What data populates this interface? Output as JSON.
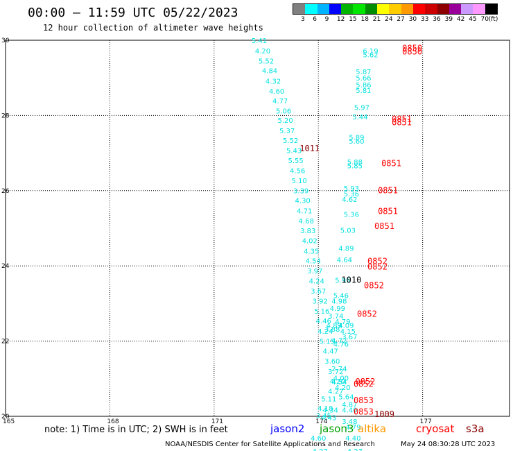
{
  "header": {
    "title": "00:00 – 11:59 UTC 05/22/2023",
    "subtitle": "12 hour collection of altimeter wave heights"
  },
  "legend": {
    "colors": [
      "#808080",
      "#00ffff",
      "#00b4ff",
      "#0000ff",
      "#00b400",
      "#00e600",
      "#008c00",
      "#ffff00",
      "#ffcc00",
      "#ff9900",
      "#ff0000",
      "#cc0000",
      "#8c0000",
      "#990099",
      "#cc99ff",
      "#ff99ff",
      "#000000"
    ],
    "labels": [
      "3",
      "6",
      "9",
      "12",
      "15",
      "18",
      "21",
      "24",
      "27",
      "30",
      "33",
      "36",
      "39",
      "42",
      "45",
      "70",
      "(ft)"
    ]
  },
  "footer": {
    "note": "note: 1) Time is in UTC; 2) SWH is in feet",
    "satellites": [
      {
        "name": "jason2",
        "color": "#0000ff"
      },
      {
        "name": "jason3",
        "color": "#00a000"
      },
      {
        "name": "altika",
        "color": "#ff9900"
      },
      {
        "name": "cryosat",
        "color": "#ff0000"
      },
      {
        "name": "s3a",
        "color": "#8c0000"
      }
    ],
    "credit": "NOAA/NESDIS Center for Satellite Applications and Research",
    "timestamp": "May 24 08:30:28 UTC 2023"
  },
  "map": {
    "lon_range": [
      165,
      179.5
    ],
    "lat_range": [
      20,
      30
    ],
    "lon_ticks": [
      "165",
      "168",
      "171",
      "174",
      "177"
    ],
    "lat_ticks": [
      "30",
      "28",
      "26",
      "24",
      "22",
      "20"
    ],
    "lat_tick_values": [
      30,
      28,
      26,
      24,
      22,
      20
    ],
    "lon_tick_values": [
      165,
      168,
      171,
      174,
      177
    ]
  },
  "chart_data": {
    "type": "scatter",
    "title": "00:00 – 11:59 UTC 05/22/2023",
    "subtitle": "12 hour collection of altimeter wave heights",
    "xlim": [
      165,
      179.5
    ],
    "ylim": [
      20,
      30
    ],
    "grid": true,
    "wave_heights": [
      {
        "lon": 172.3,
        "lat": 29.93,
        "label": "5.41"
      },
      {
        "lon": 172.4,
        "lat": 29.65,
        "label": "4.20"
      },
      {
        "lon": 172.5,
        "lat": 29.38,
        "label": "5.52"
      },
      {
        "lon": 172.6,
        "lat": 29.12,
        "label": "4.84"
      },
      {
        "lon": 172.7,
        "lat": 28.85,
        "label": "4.32"
      },
      {
        "lon": 172.8,
        "lat": 28.58,
        "label": "4.60"
      },
      {
        "lon": 172.9,
        "lat": 28.32,
        "label": "4.77"
      },
      {
        "lon": 173.0,
        "lat": 28.05,
        "label": "5.06"
      },
      {
        "lon": 173.05,
        "lat": 27.8,
        "label": "5.20"
      },
      {
        "lon": 173.1,
        "lat": 27.53,
        "label": "5.37"
      },
      {
        "lon": 173.2,
        "lat": 27.27,
        "label": "5.52"
      },
      {
        "lon": 173.3,
        "lat": 27.0,
        "label": "5.43"
      },
      {
        "lon": 173.35,
        "lat": 26.73,
        "label": "5.55"
      },
      {
        "lon": 173.4,
        "lat": 26.47,
        "label": "4.56"
      },
      {
        "lon": 173.45,
        "lat": 26.2,
        "label": "5.10"
      },
      {
        "lon": 173.5,
        "lat": 25.93,
        "label": "3.39"
      },
      {
        "lon": 173.55,
        "lat": 25.67,
        "label": "4.30"
      },
      {
        "lon": 173.6,
        "lat": 25.4,
        "label": "4.71"
      },
      {
        "lon": 173.65,
        "lat": 25.13,
        "label": "4.68"
      },
      {
        "lon": 173.7,
        "lat": 24.87,
        "label": "3.83"
      },
      {
        "lon": 173.75,
        "lat": 24.6,
        "label": "4.02"
      },
      {
        "lon": 173.8,
        "lat": 24.33,
        "label": "4.35"
      },
      {
        "lon": 173.85,
        "lat": 24.07,
        "label": "4.54"
      },
      {
        "lon": 173.9,
        "lat": 23.8,
        "label": "3.97"
      },
      {
        "lon": 173.95,
        "lat": 23.53,
        "label": "4.24"
      },
      {
        "lon": 174.0,
        "lat": 23.27,
        "label": "3.67"
      },
      {
        "lon": 174.05,
        "lat": 23.0,
        "label": "3.92"
      },
      {
        "lon": 174.1,
        "lat": 22.73,
        "label": "5.16"
      },
      {
        "lon": 174.15,
        "lat": 22.47,
        "label": "4.46"
      },
      {
        "lon": 174.2,
        "lat": 22.2,
        "label": "4.24"
      },
      {
        "lon": 174.25,
        "lat": 21.93,
        "label": "5.15"
      },
      {
        "lon": 174.35,
        "lat": 21.67,
        "label": "4.47"
      },
      {
        "lon": 174.4,
        "lat": 21.4,
        "label": "3.60"
      },
      {
        "lon": 174.5,
        "lat": 21.13,
        "label": "3.72"
      },
      {
        "lon": 174.55,
        "lat": 20.87,
        "label": "4.20"
      },
      {
        "lon": 174.5,
        "lat": 20.6,
        "label": "4.27"
      },
      {
        "lon": 174.6,
        "lat": 21.95,
        "label": "4.72"
      },
      {
        "lon": 174.65,
        "lat": 21.85,
        "label": "4.76"
      },
      {
        "lon": 174.7,
        "lat": 22.45,
        "label": "4.79"
      },
      {
        "lon": 174.8,
        "lat": 22.35,
        "label": "4.09"
      },
      {
        "lon": 174.85,
        "lat": 22.2,
        "label": "4.15"
      },
      {
        "lon": 174.9,
        "lat": 22.05,
        "label": "3.67"
      },
      {
        "lon": 174.6,
        "lat": 21.2,
        "label": "2.74"
      },
      {
        "lon": 174.65,
        "lat": 20.95,
        "label": "4.00"
      },
      {
        "lon": 174.6,
        "lat": 20.85,
        "label": "4.54"
      },
      {
        "lon": 174.7,
        "lat": 20.7,
        "label": "4.20"
      },
      {
        "lon": 174.8,
        "lat": 20.45,
        "label": "5.64"
      },
      {
        "lon": 174.3,
        "lat": 20.4,
        "label": "5.11"
      },
      {
        "lon": 174.9,
        "lat": 20.25,
        "label": "4.87"
      },
      {
        "lon": 174.2,
        "lat": 20.15,
        "label": "4.18"
      },
      {
        "lon": 174.35,
        "lat": 20.1,
        "label": "4.34"
      },
      {
        "lon": 174.9,
        "lat": 20.1,
        "label": "4.40"
      },
      {
        "lon": 174.15,
        "lat": 19.95,
        "label": "3.45"
      },
      {
        "lon": 174.3,
        "lat": 19.9,
        "label": "4.43"
      },
      {
        "lon": 174.9,
        "lat": 19.8,
        "label": "3.48"
      },
      {
        "lon": 175.0,
        "lat": 19.65,
        "label": "4.79"
      },
      {
        "lon": 174.0,
        "lat": 19.35,
        "label": "4.60"
      },
      {
        "lon": 175.0,
        "lat": 19.35,
        "label": "4.40"
      },
      {
        "lon": 174.05,
        "lat": 19.0,
        "label": "4.27"
      },
      {
        "lon": 175.05,
        "lat": 19.0,
        "label": "4.27"
      },
      {
        "lon": 175.5,
        "lat": 29.65,
        "label": "6.19"
      },
      {
        "lon": 175.5,
        "lat": 29.55,
        "label": "5.62"
      },
      {
        "lon": 175.3,
        "lat": 29.1,
        "label": "5.87"
      },
      {
        "lon": 175.3,
        "lat": 28.93,
        "label": "5.66"
      },
      {
        "lon": 175.3,
        "lat": 28.75,
        "label": "5.86"
      },
      {
        "lon": 175.3,
        "lat": 28.6,
        "label": "5.81"
      },
      {
        "lon": 175.25,
        "lat": 28.15,
        "label": "5.97"
      },
      {
        "lon": 175.2,
        "lat": 27.9,
        "label": "5.44"
      },
      {
        "lon": 175.1,
        "lat": 27.35,
        "label": "5.89"
      },
      {
        "lon": 175.1,
        "lat": 27.25,
        "label": "5.60"
      },
      {
        "lon": 175.05,
        "lat": 26.7,
        "label": "5.88"
      },
      {
        "lon": 175.05,
        "lat": 26.6,
        "label": "5.85"
      },
      {
        "lon": 174.95,
        "lat": 26.0,
        "label": "5.93"
      },
      {
        "lon": 174.95,
        "lat": 25.85,
        "label": "5.36"
      },
      {
        "lon": 174.9,
        "lat": 25.7,
        "label": "4.62"
      },
      {
        "lon": 174.95,
        "lat": 25.3,
        "label": "5.36"
      },
      {
        "lon": 174.85,
        "lat": 24.88,
        "label": "5.03"
      },
      {
        "lon": 174.8,
        "lat": 24.4,
        "label": "4.89"
      },
      {
        "lon": 174.75,
        "lat": 24.1,
        "label": "4.64"
      },
      {
        "lon": 174.7,
        "lat": 23.55,
        "label": "5.95"
      },
      {
        "lon": 174.65,
        "lat": 23.15,
        "label": "5.46"
      },
      {
        "lon": 174.6,
        "lat": 23.0,
        "label": "4.98"
      },
      {
        "lon": 174.55,
        "lat": 22.8,
        "label": "4.99"
      },
      {
        "lon": 174.5,
        "lat": 22.6,
        "label": "3.74"
      },
      {
        "lon": 174.45,
        "lat": 22.35,
        "label": "4.89"
      },
      {
        "lon": 174.4,
        "lat": 22.25,
        "label": "3.88"
      }
    ],
    "time_labels": [
      {
        "lon": 176.7,
        "lat": 29.71,
        "label": "0850",
        "color": "#ff0000"
      },
      {
        "lon": 176.7,
        "lat": 29.62,
        "label": "0850",
        "color": "#ff0000"
      },
      {
        "lon": 176.4,
        "lat": 27.83,
        "label": "0851",
        "color": "#ff0000"
      },
      {
        "lon": 176.4,
        "lat": 27.74,
        "label": "0851",
        "color": "#ff0000"
      },
      {
        "lon": 173.75,
        "lat": 27.05,
        "label": "1011",
        "color": "#8c0000"
      },
      {
        "lon": 176.1,
        "lat": 26.65,
        "label": "0851",
        "color": "#ff0000"
      },
      {
        "lon": 176.0,
        "lat": 25.93,
        "label": "0851",
        "color": "#ff0000"
      },
      {
        "lon": 176.0,
        "lat": 25.38,
        "label": "0851",
        "color": "#ff0000"
      },
      {
        "lon": 175.9,
        "lat": 24.98,
        "label": "0851",
        "color": "#ff0000"
      },
      {
        "lon": 175.7,
        "lat": 24.05,
        "label": "0852",
        "color": "#ff0000"
      },
      {
        "lon": 175.7,
        "lat": 23.9,
        "label": "0852",
        "color": "#ff0000"
      },
      {
        "lon": 174.95,
        "lat": 23.55,
        "label": "1010",
        "color": "#000000"
      },
      {
        "lon": 175.6,
        "lat": 23.4,
        "label": "0852",
        "color": "#ff0000"
      },
      {
        "lon": 175.4,
        "lat": 22.65,
        "label": "0852",
        "color": "#ff0000"
      },
      {
        "lon": 175.35,
        "lat": 20.85,
        "label": "0852",
        "color": "#ff0000"
      },
      {
        "lon": 175.3,
        "lat": 20.78,
        "label": "0852",
        "color": "#ff0000"
      },
      {
        "lon": 175.3,
        "lat": 20.35,
        "label": "0853",
        "color": "#ff0000"
      },
      {
        "lon": 175.3,
        "lat": 20.05,
        "label": "0853",
        "color": "#ff0000"
      },
      {
        "lon": 175.9,
        "lat": 19.98,
        "label": "1009",
        "color": "#8c0000"
      }
    ]
  }
}
